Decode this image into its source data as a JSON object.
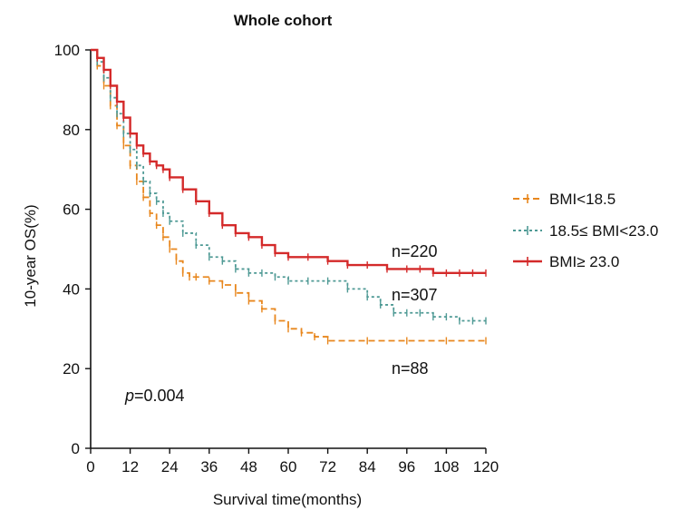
{
  "chart_data": {
    "type": "line",
    "title": "Whole cohort",
    "xlabel": "Survival time(months)",
    "ylabel": "10-year OS(%)",
    "xlim": [
      0,
      120
    ],
    "ylim": [
      0,
      100
    ],
    "x_ticks": [
      "0",
      "12",
      "24",
      "36",
      "48",
      "60",
      "72",
      "84",
      "96",
      "108",
      "120"
    ],
    "y_ticks": [
      "0",
      "20",
      "40",
      "60",
      "80",
      "100"
    ],
    "grid": false,
    "legend_position": "right",
    "series": [
      {
        "name": "BMI<18.5",
        "color": "#e8871e",
        "style": "dashed",
        "count_label": "n=88",
        "x": [
          0,
          2,
          4,
          6,
          8,
          10,
          12,
          14,
          16,
          18,
          20,
          22,
          24,
          26,
          28,
          30,
          32,
          36,
          40,
          44,
          48,
          52,
          56,
          60,
          64,
          68,
          72,
          84,
          96,
          108,
          120
        ],
        "y": [
          100,
          96,
          91,
          86,
          81,
          76,
          71,
          67,
          63,
          59,
          56,
          53,
          50,
          47,
          44,
          43,
          43,
          42,
          41,
          39,
          37,
          35,
          32,
          30,
          29,
          28,
          27,
          27,
          27,
          27,
          27
        ]
      },
      {
        "name": "18.5≤ BMI<23.0",
        "color": "#4f9a95",
        "style": "dotted",
        "count_label": "n=307",
        "x": [
          0,
          2,
          4,
          6,
          8,
          10,
          12,
          14,
          16,
          18,
          20,
          22,
          24,
          28,
          32,
          36,
          40,
          44,
          48,
          52,
          56,
          60,
          66,
          72,
          78,
          84,
          88,
          92,
          96,
          100,
          104,
          108,
          112,
          116,
          120
        ],
        "y": [
          100,
          97,
          93,
          88,
          84,
          79,
          75,
          71,
          67,
          64,
          62,
          59,
          57,
          54,
          51,
          48,
          47,
          45,
          44,
          44,
          43,
          42,
          42,
          42,
          40,
          38,
          36,
          34,
          34,
          34,
          33,
          33,
          32,
          32,
          32
        ]
      },
      {
        "name": "BMI≥ 23.0",
        "color": "#d42a2a",
        "style": "solid",
        "count_label": "n=220",
        "x": [
          0,
          2,
          4,
          6,
          8,
          10,
          12,
          14,
          16,
          18,
          20,
          22,
          24,
          28,
          32,
          36,
          40,
          44,
          48,
          52,
          56,
          60,
          66,
          72,
          78,
          84,
          90,
          96,
          100,
          104,
          108,
          112,
          116,
          120
        ],
        "y": [
          100,
          98,
          95,
          91,
          87,
          83,
          79,
          76,
          74,
          72,
          71,
          70,
          68,
          65,
          62,
          59,
          56,
          54,
          53,
          51,
          49,
          48,
          48,
          47,
          46,
          46,
          45,
          45,
          45,
          44,
          44,
          44,
          44,
          44
        ]
      }
    ],
    "annotations": {
      "p_prefix": "p",
      "p_value": "=0.004"
    }
  }
}
